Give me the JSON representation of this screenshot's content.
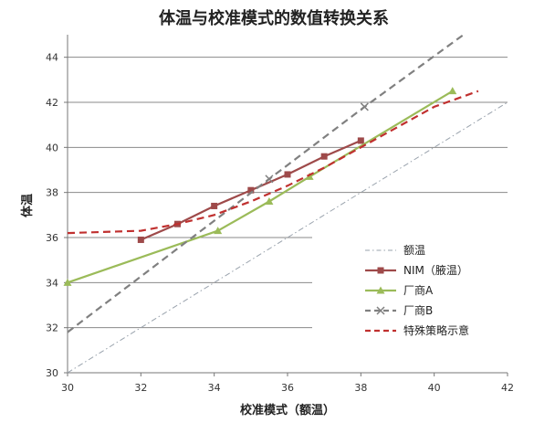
{
  "chart_data": {
    "type": "line",
    "title": "体温与校准模式的数值转换关系",
    "xlabel": "校准模式（额温）",
    "ylabel": "体温",
    "xlim": [
      30,
      42
    ],
    "ylim": [
      30,
      45
    ],
    "x_ticks": [
      30,
      32,
      34,
      36,
      38,
      40,
      42
    ],
    "y_ticks": [
      30,
      32,
      34,
      36,
      38,
      40,
      42,
      44
    ],
    "grid": "horizontal",
    "legend_position": "right",
    "series": [
      {
        "name": "额温",
        "color": "#9aa3ad",
        "style": "dashdot",
        "marker": "none",
        "x": [
          30,
          42
        ],
        "y": [
          30,
          42
        ]
      },
      {
        "name": "NIM（腋温）",
        "color": "#9e4a4a",
        "style": "solid",
        "marker": "square",
        "x": [
          32,
          33,
          34,
          35,
          36,
          37,
          38
        ],
        "y": [
          35.9,
          36.6,
          37.4,
          38.1,
          38.8,
          39.6,
          40.3
        ]
      },
      {
        "name": "厂商A",
        "color": "#9bbb59",
        "style": "solid",
        "marker": "triangle",
        "x": [
          30,
          34.1,
          35.5,
          36.6,
          40.5
        ],
        "y": [
          34.0,
          36.3,
          37.6,
          38.7,
          42.5
        ]
      },
      {
        "name": "厂商B",
        "color": "#808080",
        "style": "dashed",
        "marker": "x",
        "x": [
          30,
          35.5,
          38.1,
          40.8
        ],
        "y": [
          31.8,
          38.6,
          41.8,
          45.0
        ]
      },
      {
        "name": "特殊策略示意",
        "color": "#c0302f",
        "style": "dashed",
        "marker": "none",
        "x": [
          30,
          32,
          33,
          34,
          35,
          36,
          37,
          38,
          39,
          40,
          41.2
        ],
        "y": [
          36.2,
          36.3,
          36.6,
          37.0,
          37.6,
          38.3,
          39.1,
          40.0,
          40.9,
          41.8,
          42.5
        ]
      }
    ]
  }
}
